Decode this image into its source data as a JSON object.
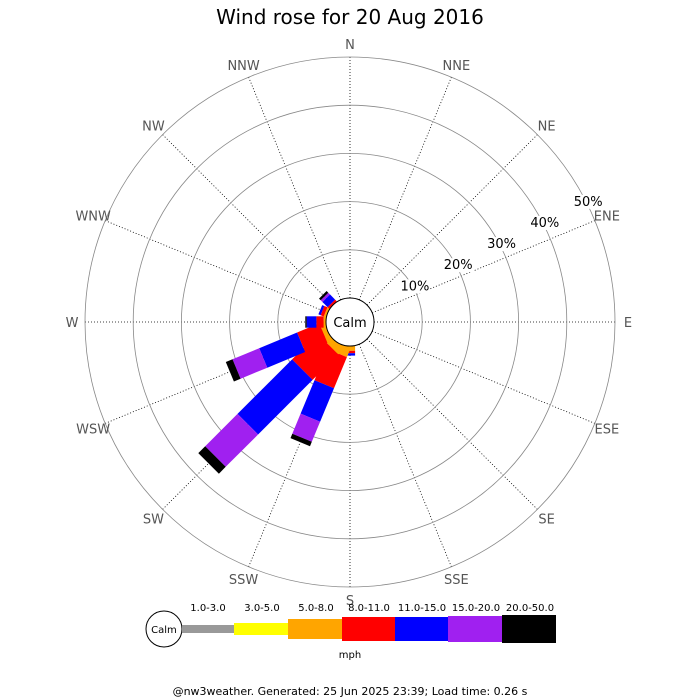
{
  "chart_data": {
    "type": "wind-rose",
    "title": "Wind rose for 20 Aug 2016",
    "directions": [
      "N",
      "NNE",
      "NE",
      "ENE",
      "E",
      "ESE",
      "SE",
      "SSE",
      "S",
      "SSW",
      "SW",
      "WSW",
      "W",
      "WNW",
      "NW",
      "NNW"
    ],
    "rings": [
      10,
      20,
      30,
      40,
      50
    ],
    "ring_labels": [
      "10%",
      "20%",
      "30%",
      "40%",
      "50%"
    ],
    "rmax": 50,
    "calm_label": "Calm",
    "speed_bins": [
      {
        "label": "1.0-3.0",
        "color": "#999999"
      },
      {
        "label": "3.0-5.0",
        "color": "#ffff00"
      },
      {
        "label": "5.0-8.0",
        "color": "#ffa500"
      },
      {
        "label": "8.0-11.0",
        "color": "#ff0000"
      },
      {
        "label": "11.0-15.0",
        "color": "#0000ff"
      },
      {
        "label": "15.0-20.0",
        "color": "#a020f0"
      },
      {
        "label": "20.0-50.0",
        "color": "#000000"
      }
    ],
    "unit": "mph",
    "series": [
      {
        "direction": "S",
        "values": [
          0,
          0,
          1.0,
          0.5,
          0.5,
          0,
          0
        ]
      },
      {
        "direction": "SSW",
        "values": [
          0,
          0,
          2.0,
          7.0,
          7.5,
          4.5,
          1.0
        ]
      },
      {
        "direction": "SW",
        "values": [
          0,
          0,
          1.5,
          7.5,
          16.0,
          9.5,
          2.0
        ]
      },
      {
        "direction": "WSW",
        "values": [
          0,
          0,
          1.0,
          5.0,
          8.5,
          6.0,
          1.5
        ]
      },
      {
        "direction": "W",
        "values": [
          0,
          0,
          0.5,
          1.5,
          2.0,
          0,
          0.3
        ]
      },
      {
        "direction": "WNW",
        "values": [
          0,
          0,
          0.5,
          0.7,
          0.5,
          0,
          0
        ]
      },
      {
        "direction": "NW",
        "values": [
          0,
          0,
          0,
          0.5,
          1.5,
          0.5,
          0.5
        ]
      }
    ]
  },
  "footer": "@nw3weather. Generated: 25 Jun 2025 23:39; Load time: 0.26 s"
}
